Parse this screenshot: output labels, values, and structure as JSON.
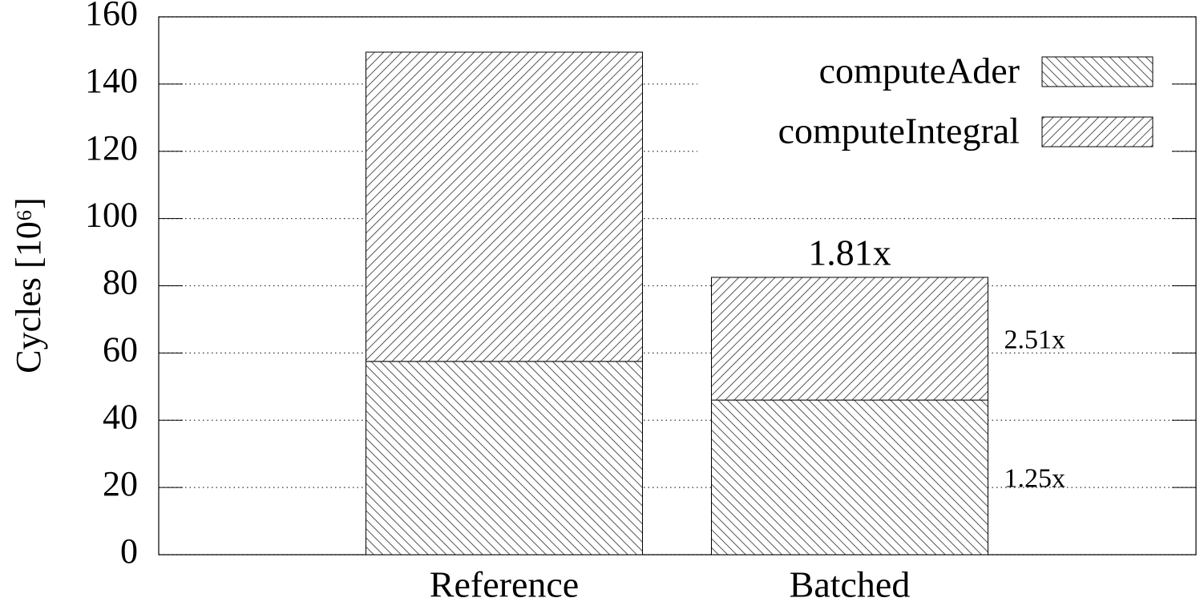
{
  "chart_data": {
    "type": "stacked_bar",
    "y_label": "Cycles [10⁶]",
    "categories": [
      "Reference",
      "Batched"
    ],
    "series": [
      {
        "name": "computeAder",
        "color": "#555555",
        "hatch": "backslash",
        "values": [
          57.5,
          46
        ],
        "annotations": [
          null,
          "1.25x"
        ]
      },
      {
        "name": "computeIntegral",
        "color": "#555555",
        "hatch": "slash",
        "values": [
          92,
          36.5
        ],
        "annotations": [
          null,
          "2.51x"
        ]
      }
    ],
    "total_annotations": [
      null,
      "1.81x"
    ],
    "ylim": [
      0,
      160
    ],
    "yticks": [
      0,
      20,
      40,
      60,
      80,
      100,
      120,
      140,
      160
    ],
    "grid": true,
    "legend": "top-right"
  }
}
